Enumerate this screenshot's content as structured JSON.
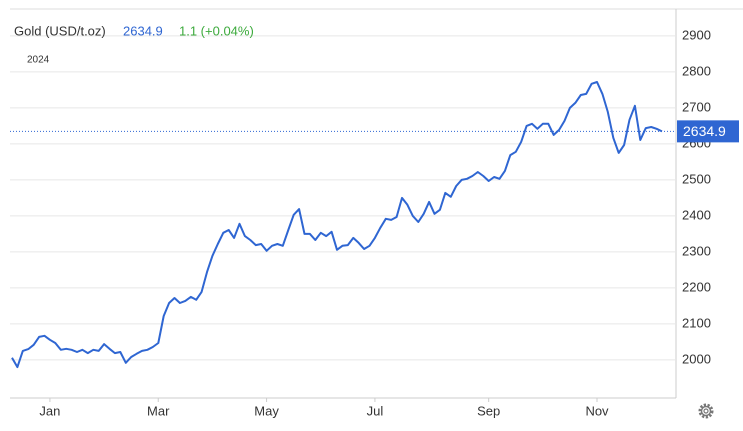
{
  "chart_data": {
    "type": "line",
    "title": "Gold (USD/t.oz)",
    "last_price": 2634.9,
    "change_label": "1.1 (+0.04%)",
    "year_label": "2024",
    "categories": [
      null,
      null,
      null,
      null,
      null,
      null,
      null,
      "Jan",
      null,
      null,
      null,
      null,
      null,
      null,
      null,
      null,
      null,
      null,
      null,
      null,
      null,
      null,
      null,
      null,
      null,
      null,
      null,
      "Mar",
      null,
      null,
      null,
      null,
      null,
      null,
      null,
      null,
      null,
      null,
      null,
      null,
      null,
      null,
      null,
      null,
      null,
      null,
      null,
      "May",
      null,
      null,
      null,
      null,
      null,
      null,
      null,
      null,
      null,
      null,
      null,
      null,
      null,
      null,
      null,
      null,
      null,
      null,
      null,
      "Jul",
      null,
      null,
      null,
      null,
      null,
      null,
      null,
      null,
      null,
      null,
      null,
      null,
      null,
      null,
      null,
      null,
      null,
      null,
      null,
      null,
      "Sep",
      null,
      null,
      null,
      null,
      null,
      null,
      null,
      null,
      null,
      null,
      null,
      null,
      null,
      null,
      null,
      null,
      null,
      null,
      null,
      "Nov",
      null,
      null,
      null,
      null,
      null,
      null,
      null,
      null,
      null,
      null,
      null,
      null
    ],
    "values": [
      2006,
      1980,
      2025,
      2030,
      2042,
      2064,
      2067,
      2056,
      2047,
      2028,
      2031,
      2028,
      2022,
      2028,
      2019,
      2028,
      2025,
      2044,
      2031,
      2019,
      2022,
      1992,
      2008,
      2017,
      2025,
      2028,
      2036,
      2047,
      2122,
      2158,
      2172,
      2158,
      2164,
      2175,
      2167,
      2189,
      2244,
      2289,
      2322,
      2353,
      2361,
      2339,
      2378,
      2344,
      2333,
      2319,
      2322,
      2303,
      2317,
      2322,
      2317,
      2361,
      2403,
      2419,
      2350,
      2350,
      2333,
      2353,
      2344,
      2356,
      2306,
      2317,
      2319,
      2339,
      2325,
      2308,
      2317,
      2339,
      2367,
      2392,
      2389,
      2397,
      2450,
      2431,
      2400,
      2383,
      2406,
      2439,
      2406,
      2417,
      2464,
      2453,
      2483,
      2500,
      2503,
      2511,
      2522,
      2511,
      2497,
      2508,
      2503,
      2525,
      2569,
      2578,
      2606,
      2650,
      2656,
      2642,
      2656,
      2656,
      2625,
      2639,
      2664,
      2700,
      2714,
      2736,
      2739,
      2767,
      2772,
      2739,
      2689,
      2617,
      2575,
      2597,
      2667,
      2706,
      2611,
      2644,
      2647,
      2642,
      2634.9
    ],
    "color": "#2f66d2",
    "ylim": [
      1897,
      2972
    ],
    "yticks": [
      2000,
      2100,
      2200,
      2300,
      2400,
      2500,
      2600,
      2700,
      2800,
      2900
    ],
    "grid": true
  }
}
